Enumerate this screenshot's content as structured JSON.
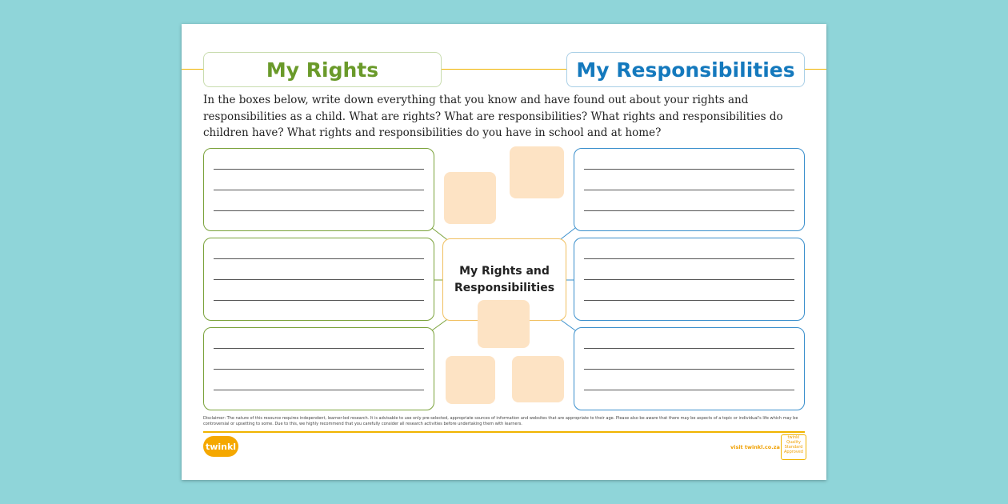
{
  "titles": {
    "rights": "My Rights",
    "responsibilities": "My Responsibilities"
  },
  "intro": "In the boxes below, write down everything that you know and have found out about your rights and responsibilities as a child. What are rights? What are responsibilities? What rights and responsibilities do children have? What rights and responsibilities do you have in school and at home?",
  "center": "My Rights and Responsibilities",
  "disclaimer": "Disclaimer: The nature of this resource requires independent, learner-led research. It is advisable to use only pre-selected, appropriate sources of information and websites that are appropriate to their age. Please also be aware that there may be aspects of a topic or individual's life which may be controversial or upsetting to some. Due to this, we highly recommend that you carefully consider all research activities before undertaking them with learners.",
  "footer": {
    "logo": "twinkl",
    "visit": "visit twinkl.co.za",
    "badge": "twinkl Quality Standard Approved"
  },
  "colors": {
    "rights": "#6a9a2a",
    "responsibilities": "#1479bd",
    "accent": "#f0b400",
    "background": "#8fd5d9"
  }
}
